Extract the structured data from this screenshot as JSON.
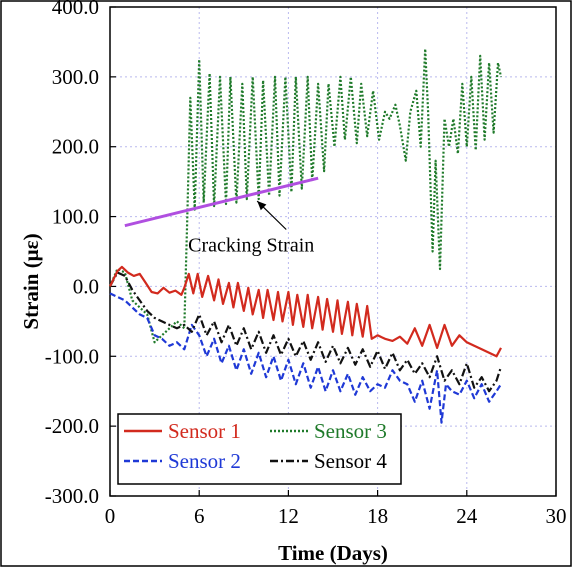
{
  "chart_data": {
    "type": "line",
    "xlabel": "Time (Days)",
    "ylabel": "Strain (με)",
    "xlim": [
      0,
      30
    ],
    "ylim": [
      -300,
      400
    ],
    "x_ticks": [
      0,
      6,
      12,
      18,
      24,
      30
    ],
    "x_tick_labels": [
      "0",
      "6",
      "12",
      "18",
      "24",
      "30"
    ],
    "y_ticks": [
      400,
      300,
      200,
      100,
      -0.0,
      -100,
      -200,
      -300
    ],
    "y_tick_labels": [
      "400.0",
      "300.0",
      "200.0",
      "100.0",
      "0.0",
      "-100.0",
      "-200.0",
      "-300.0"
    ],
    "grid": "dotted vertical and horizontal",
    "legend_position": "bottom-left",
    "annotation": {
      "text": "Cracking Strain",
      "line": {
        "x": [
          1,
          14
        ],
        "y": [
          87,
          155
        ],
        "color": "#b04fe0"
      },
      "arrow_to": {
        "x": 9.9,
        "y": 128
      },
      "label_at": {
        "x": 9.5,
        "y": 50
      }
    },
    "series": [
      {
        "name": "Sensor 1",
        "color": "#d22a1e",
        "dash": "solid",
        "x": [
          0,
          0.5,
          0.8,
          1.2,
          1.6,
          2,
          2.4,
          2.8,
          3.2,
          3.6,
          4,
          4.4,
          4.8,
          5,
          5.3,
          5.6,
          5.9,
          6.2,
          6.6,
          7,
          7.3,
          7.6,
          8,
          8.3,
          8.6,
          9,
          9.3,
          9.6,
          10,
          10.3,
          10.6,
          11,
          11.3,
          11.6,
          12,
          12.3,
          12.6,
          13,
          13.3,
          13.6,
          14,
          14.3,
          14.6,
          15,
          15.3,
          15.6,
          16,
          16.3,
          16.6,
          17,
          17.3,
          17.6,
          18,
          18.5,
          19,
          19.5,
          20,
          20.5,
          21,
          21.5,
          22,
          22.5,
          23,
          23.5,
          24,
          24.5,
          25,
          25.5,
          26,
          26.3
        ],
        "values": [
          0,
          22,
          28,
          20,
          15,
          18,
          5,
          -8,
          -10,
          -2,
          -9,
          -6,
          -12,
          -2,
          18,
          -10,
          18,
          -15,
          15,
          -20,
          10,
          -25,
          5,
          -30,
          5,
          -35,
          -2,
          -40,
          -5,
          -45,
          -5,
          -48,
          -8,
          -50,
          -8,
          -55,
          -12,
          -58,
          -12,
          -60,
          -15,
          -62,
          -18,
          -65,
          -20,
          -68,
          -22,
          -70,
          -25,
          -72,
          -28,
          -75,
          -70,
          -75,
          -78,
          -72,
          -82,
          -60,
          -85,
          -55,
          -88,
          -55,
          -85,
          -70,
          -80,
          -85,
          -90,
          -95,
          -100,
          -88
        ]
      },
      {
        "name": "Sensor 2",
        "color": "#1f39d6",
        "dash": "dashed",
        "x": [
          0,
          0.5,
          1,
          1.5,
          2,
          2.5,
          3,
          3.5,
          4,
          4.5,
          5,
          5.5,
          6,
          6.5,
          7,
          7.5,
          8,
          8.5,
          9,
          9.5,
          10,
          10.5,
          11,
          11.5,
          12,
          12.5,
          13,
          13.5,
          14,
          14.5,
          15,
          15.5,
          16,
          16.5,
          17,
          17.5,
          18,
          18.5,
          19,
          19.5,
          20,
          20.5,
          21,
          21.5,
          22,
          22.3,
          22.6,
          23,
          23.5,
          24,
          24.5,
          25,
          25.5,
          26,
          26.3
        ],
        "values": [
          -10,
          -15,
          -20,
          -30,
          -40,
          -45,
          -70,
          -75,
          -85,
          -80,
          -90,
          -55,
          -70,
          -100,
          -75,
          -110,
          -85,
          -120,
          -90,
          -125,
          -95,
          -130,
          -100,
          -135,
          -105,
          -140,
          -110,
          -145,
          -115,
          -150,
          -120,
          -150,
          -125,
          -155,
          -130,
          -150,
          -140,
          -145,
          -120,
          -135,
          -140,
          -165,
          -135,
          -175,
          -120,
          -195,
          -140,
          -150,
          -155,
          -135,
          -160,
          -140,
          -165,
          -150,
          -140
        ]
      },
      {
        "name": "Sensor 3",
        "color": "#1f7a2a",
        "dash": "dotted",
        "x": [
          0,
          0.5,
          1,
          1.5,
          2,
          2.5,
          3,
          3.5,
          4,
          4.5,
          5,
          5.2,
          5.4,
          5.7,
          6,
          6.3,
          6.7,
          7,
          7.4,
          7.8,
          8.1,
          8.5,
          8.9,
          9.2,
          9.6,
          10,
          10.3,
          10.7,
          11.1,
          11.4,
          11.8,
          12.2,
          12.5,
          12.9,
          13.3,
          13.6,
          14,
          14.4,
          14.7,
          15.1,
          15.5,
          15.8,
          16.2,
          16.6,
          16.9,
          17.3,
          17.7,
          18.1,
          18.5,
          18.8,
          19.2,
          19.5,
          19.9,
          20.2,
          20.6,
          20.9,
          21.2,
          21.4,
          21.7,
          21.9,
          22.2,
          22.5,
          22.8,
          23.1,
          23.4,
          23.7,
          24,
          24.3,
          24.6,
          24.9,
          25.2,
          25.5,
          25.8,
          26.1,
          26.3
        ],
        "values": [
          0,
          25,
          20,
          -20,
          -30,
          -40,
          -80,
          -70,
          -60,
          -50,
          -60,
          100,
          270,
          110,
          325,
          120,
          305,
          115,
          300,
          118,
          300,
          120,
          290,
          125,
          300,
          125,
          295,
          130,
          300,
          130,
          300,
          135,
          300,
          140,
          300,
          150,
          290,
          165,
          290,
          200,
          300,
          210,
          300,
          205,
          290,
          215,
          280,
          210,
          250,
          240,
          260,
          230,
          180,
          250,
          280,
          200,
          340,
          250,
          50,
          180,
          25,
          240,
          200,
          240,
          190,
          290,
          200,
          300,
          195,
          330,
          210,
          320,
          220,
          320,
          300
        ]
      },
      {
        "name": "Sensor 4",
        "color": "#111111",
        "dash": "dashdot",
        "x": [
          0,
          0.5,
          1,
          1.5,
          2,
          2.5,
          3,
          3.5,
          4,
          4.5,
          5,
          5.5,
          6,
          6.5,
          7,
          7.5,
          8,
          8.5,
          9,
          9.5,
          10,
          10.5,
          11,
          11.5,
          12,
          12.5,
          13,
          13.5,
          14,
          14.5,
          15,
          15.5,
          16,
          16.5,
          17,
          17.5,
          18,
          18.5,
          19,
          19.5,
          20,
          20.5,
          21,
          21.5,
          22,
          22.5,
          23,
          23.5,
          24,
          24.5,
          25,
          25.5,
          26,
          26.3
        ],
        "values": [
          0,
          20,
          15,
          -5,
          -20,
          -35,
          -45,
          -50,
          -55,
          -60,
          -55,
          -65,
          -40,
          -70,
          -50,
          -80,
          -55,
          -85,
          -60,
          -90,
          -65,
          -95,
          -70,
          -98,
          -75,
          -100,
          -78,
          -105,
          -80,
          -108,
          -85,
          -110,
          -88,
          -112,
          -90,
          -115,
          -92,
          -118,
          -95,
          -120,
          -105,
          -125,
          -110,
          -130,
          -100,
          -135,
          -120,
          -140,
          -110,
          -145,
          -130,
          -150,
          -135,
          -115
        ]
      }
    ]
  }
}
